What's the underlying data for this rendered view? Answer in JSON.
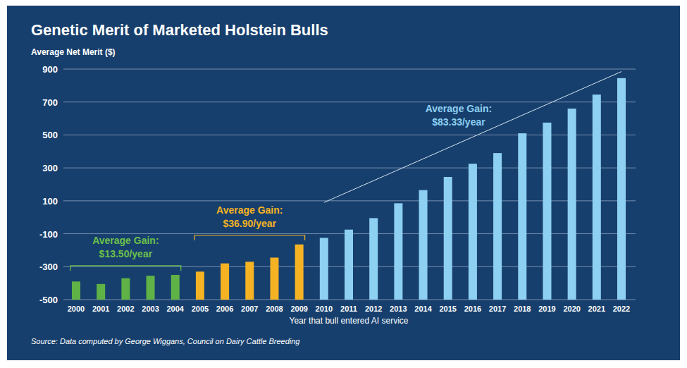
{
  "chart_data": {
    "type": "bar",
    "title": "Genetic Merit of Marketed Holstein Bulls",
    "y_label": "Average Net Merit ($)",
    "x_label": "Year that bull entered AI service",
    "source": "Source: Data computed by George Wiggans, Council on Dairy Cattle Breeding",
    "categories": [
      "2000",
      "2001",
      "2002",
      "2003",
      "2004",
      "2005",
      "2006",
      "2007",
      "2008",
      "2009",
      "2010",
      "2011",
      "2012",
      "2013",
      "2014",
      "2015",
      "2016",
      "2017",
      "2018",
      "2019",
      "2020",
      "2021",
      "2022"
    ],
    "values": [
      -390,
      -405,
      -370,
      -355,
      -350,
      -330,
      -280,
      -270,
      -245,
      -165,
      -125,
      -75,
      -5,
      85,
      165,
      245,
      325,
      390,
      510,
      575,
      660,
      745,
      845
    ],
    "colors": [
      "#5fb246",
      "#5fb246",
      "#5fb246",
      "#5fb246",
      "#5fb246",
      "#f5b324",
      "#f5b324",
      "#f5b324",
      "#f5b324",
      "#f5b324",
      "#8dd0f2",
      "#8dd0f2",
      "#8dd0f2",
      "#8dd0f2",
      "#8dd0f2",
      "#8dd0f2",
      "#8dd0f2",
      "#8dd0f2",
      "#8dd0f2",
      "#8dd0f2",
      "#8dd0f2",
      "#8dd0f2",
      "#8dd0f2"
    ],
    "ylim": [
      -500,
      900
    ],
    "yticks": [
      -500,
      -300,
      -100,
      100,
      300,
      500,
      700,
      900
    ],
    "grid": true,
    "annotations": [
      {
        "lines": [
          "Average Gain:",
          "$13.50/year"
        ],
        "categories": [
          "2000",
          "2004"
        ],
        "color": "#6cc04a"
      },
      {
        "lines": [
          "Average Gain:",
          "$36.90/year"
        ],
        "categories": [
          "2005",
          "2009"
        ],
        "color": "#f5b324"
      },
      {
        "lines": [
          "Average Gain:",
          "$83.33/year"
        ],
        "categories": [
          "2010",
          "2022"
        ],
        "values": [
          90,
          885
        ],
        "color": "#8dd0f2"
      }
    ]
  }
}
